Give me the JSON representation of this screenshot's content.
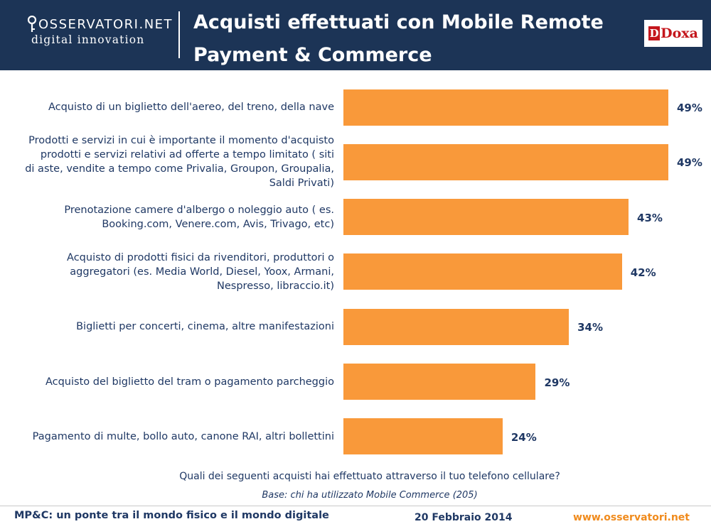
{
  "header": {
    "logo_line1": "OSSERVATORI.NET",
    "logo_line2": "digital innovation",
    "title": "Acquisti effettuati con Mobile Remote Payment & Commerce",
    "partner_logo": "Doxa",
    "partner_mark": "D",
    "colors": {
      "background": "#1c3456",
      "text": "#ffffff"
    }
  },
  "chart_data": {
    "type": "bar",
    "orientation": "horizontal",
    "categories": [
      "Acquisto di un biglietto dell'aereo, del treno, della nave",
      "Prodotti e servizi in cui è importante il momento d'acquisto prodotti e servizi relativi ad offerte a tempo limitato ( siti di aste, vendite a tempo come Privalia, Groupon, Groupalia, Saldi Privati)",
      "Prenotazione camere d'albergo o noleggio auto ( es. Booking.com, Venere.com, Avis, Trivago, etc)",
      "Acquisto di prodotti fisici da rivenditori, produttori o aggregatori (es. Media World, Diesel, Yoox, Armani, Nespresso, libraccio.it)",
      "Biglietti per concerti, cinema, altre manifestazioni",
      "Acquisto del biglietto del tram o pagamento parcheggio",
      "Pagamento di multe, bollo auto, canone RAI, altri bollettini"
    ],
    "category_lines": [
      [
        "Acquisto di un biglietto dell'aereo, del treno, della nave"
      ],
      [
        "Prodotti e servizi in cui è importante il momento d'acquisto",
        "prodotti e servizi relativi ad offerte a tempo limitato ( siti",
        "di aste, vendite a tempo come Privalia, Groupon, Groupalia,",
        "Saldi Privati)"
      ],
      [
        "Prenotazione camere d'albergo o noleggio auto ( es.",
        "Booking.com, Venere.com, Avis, Trivago, etc)"
      ],
      [
        "Acquisto di prodotti fisici da rivenditori, produttori o",
        "aggregatori (es. Media World, Diesel, Yoox, Armani,",
        "Nespresso, libraccio.it)"
      ],
      [
        "Biglietti per concerti, cinema, altre manifestazioni"
      ],
      [
        "Acquisto del biglietto del tram o pagamento parcheggio"
      ],
      [
        "Pagamento di multe, bollo auto, canone RAI, altri bollettini"
      ]
    ],
    "values": [
      49,
      49,
      43,
      42,
      34,
      29,
      24
    ],
    "value_labels": [
      "49%",
      "49%",
      "43%",
      "42%",
      "34%",
      "29%",
      "24%"
    ],
    "unit": "%",
    "bar_color": "#f9993a",
    "xlim": [
      0,
      49
    ],
    "grid": false,
    "legend": "none"
  },
  "notes": {
    "question": "Quali dei seguenti acquisti  hai effettuato attraverso il tuo telefono cellulare?",
    "base": "Base: chi ha utilizzato Mobile Commerce (205)"
  },
  "footer": {
    "left": "MP&C: un ponte tra il mondo fisico e il mondo digitale",
    "date": "20 Febbraio 2014",
    "url": "www.osservatori.net",
    "url_color": "#f08b1d"
  }
}
